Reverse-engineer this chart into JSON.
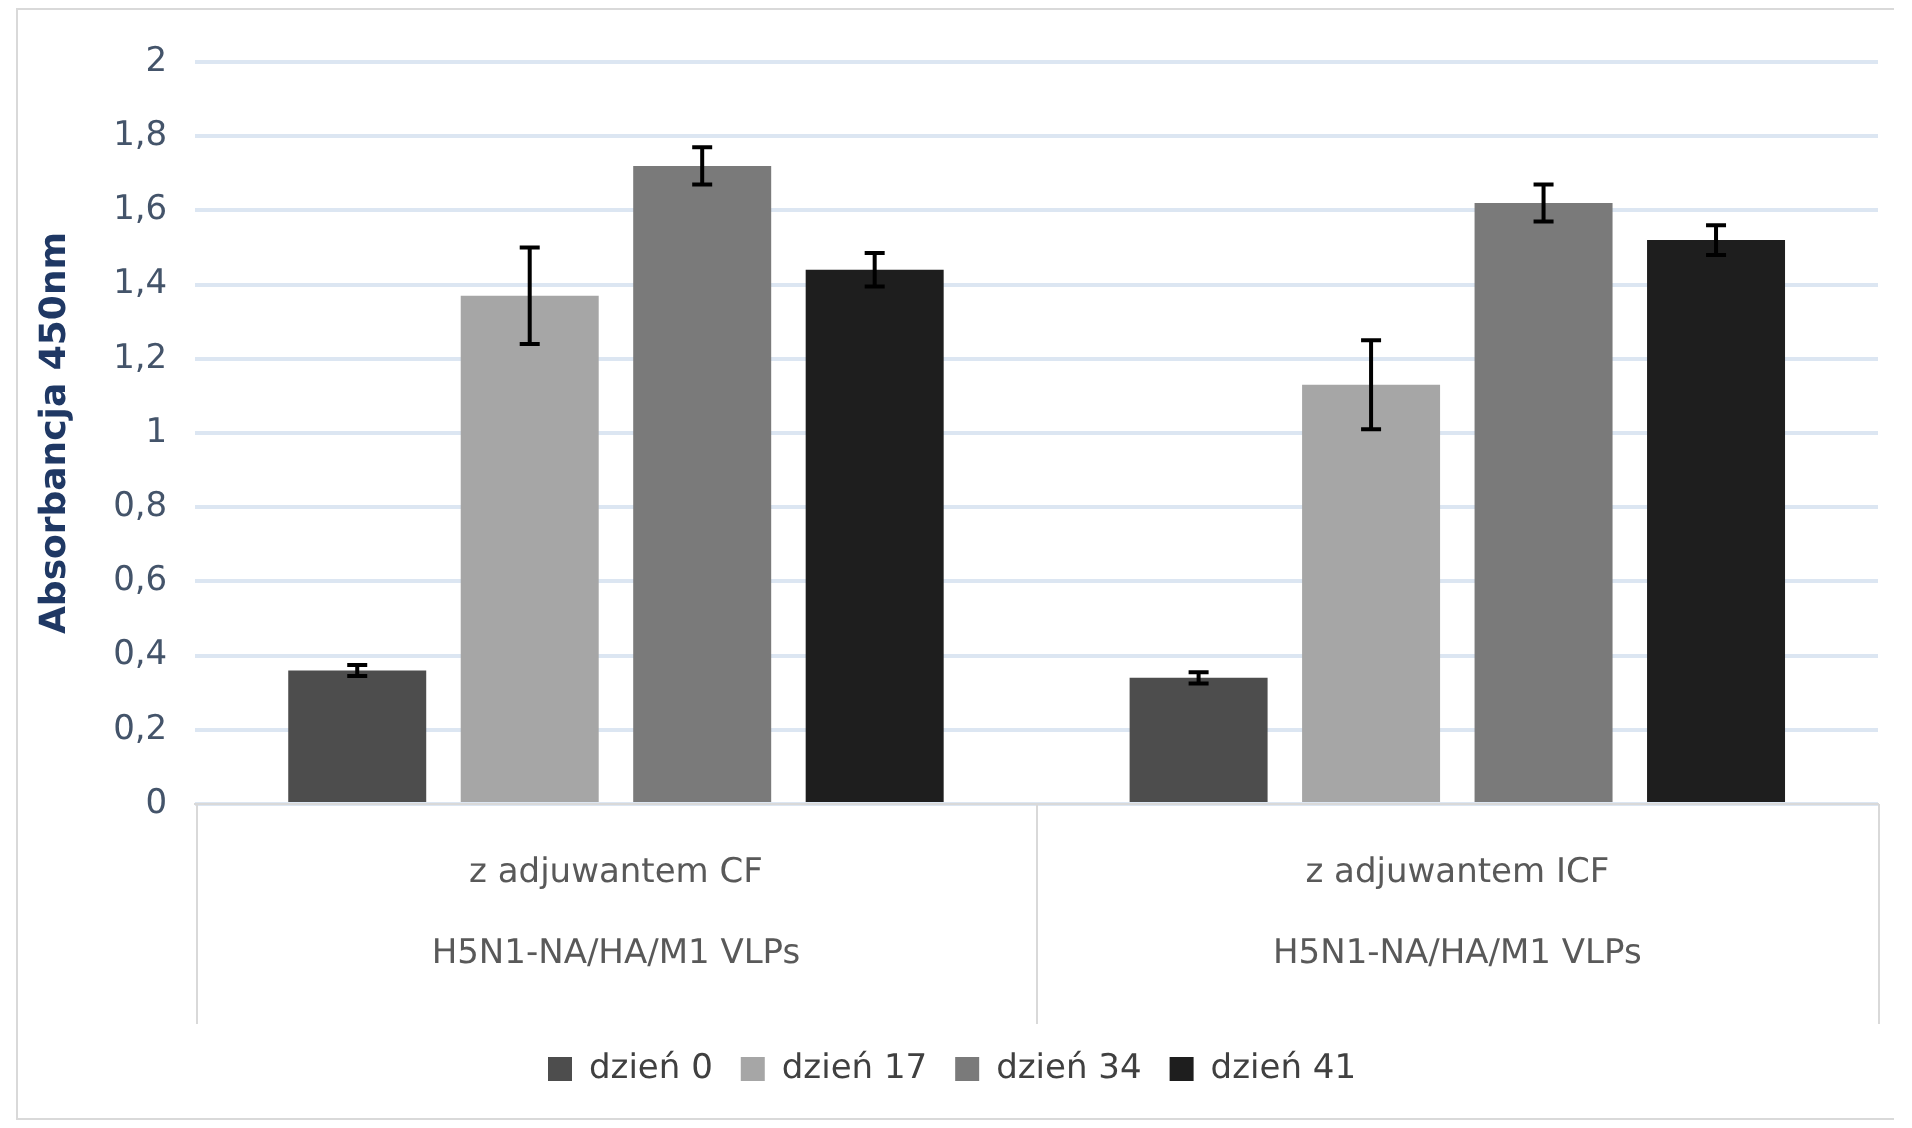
{
  "chart_data": {
    "type": "bar",
    "ylabel": "Absorbancja 450nm",
    "categories": [
      "z adjuwantem CF\nH5N1-NA/HA/M1 VLPs",
      "z adjuwantem ICF\nH5N1-NA/HA/M1 VLPs"
    ],
    "series": [
      {
        "name": "dzień 0",
        "color": "#4d4d4d",
        "values": [
          0.36,
          0.34
        ],
        "errors": [
          0.015,
          0.015
        ]
      },
      {
        "name": "dzień 17",
        "color": "#a6a6a6",
        "values": [
          1.37,
          1.13
        ],
        "errors": [
          0.13,
          0.12
        ]
      },
      {
        "name": "dzień 34",
        "color": "#7a7a7a",
        "values": [
          1.72,
          1.62
        ],
        "errors": [
          0.05,
          0.05
        ]
      },
      {
        "name": "dzień 41",
        "color": "#1e1e1e",
        "values": [
          1.44,
          1.52
        ],
        "errors": [
          0.045,
          0.04
        ]
      }
    ],
    "ylim": [
      0,
      2
    ],
    "yticks": [
      0,
      {
        "value": 0.2,
        "label": "0,2"
      },
      {
        "value": 0.4,
        "label": "0,4"
      },
      {
        "value": 0.6,
        "label": "0,6"
      },
      {
        "value": 0.8,
        "label": "0,8"
      },
      1,
      {
        "value": 1.2,
        "label": "1,2"
      },
      {
        "value": 1.4,
        "label": "1,4"
      },
      {
        "value": 1.6,
        "label": "1,6"
      },
      {
        "value": 1.8,
        "label": "1,8"
      },
      2
    ],
    "grid": "y",
    "legend": "bottom"
  }
}
